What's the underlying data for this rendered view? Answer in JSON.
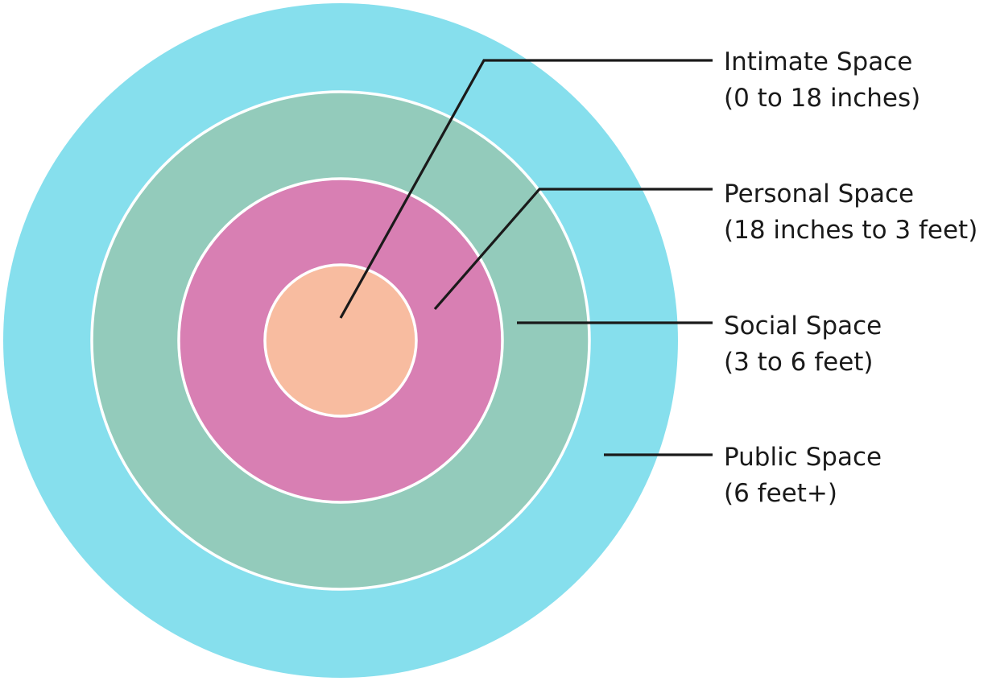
{
  "zones": [
    {
      "id": "public",
      "title": "Public Space",
      "range": "(6 feet+)",
      "color": "#86dfed"
    },
    {
      "id": "social",
      "title": "Social Space",
      "range": "(3 to 6 feet)",
      "color": "#93cbbb"
    },
    {
      "id": "personal",
      "title": "Personal Space",
      "range": "(18 inches to 3 feet)",
      "color": "#d87fb3"
    },
    {
      "id": "intimate",
      "title": "Intimate Space",
      "range": "(0 to 18 inches)",
      "color": "#f8bca0"
    }
  ]
}
